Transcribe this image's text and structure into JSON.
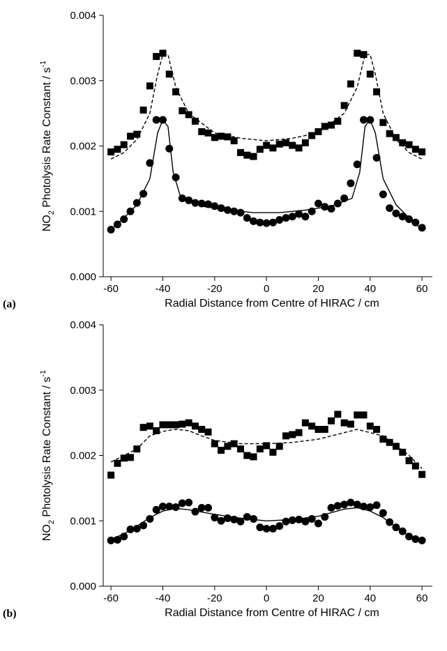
{
  "chart_data": [
    {
      "type": "scatter",
      "panel_label": "(a)",
      "xlabel": "Radial Distance from Centre of HIRAC / cm",
      "ylabel_parts": [
        "NO",
        "2",
        " Photolysis Rate Constant / s",
        "-1"
      ],
      "xlim": [
        -63,
        64
      ],
      "ylim": [
        0,
        0.004
      ],
      "xticks": [
        -60,
        -40,
        -20,
        0,
        20,
        40,
        60
      ],
      "yticks": [
        {
          "value": 0,
          "label": "0.000"
        },
        0.001,
        0.002,
        0.003,
        0.004
      ],
      "series": [
        {
          "marker": "square",
          "color": "#000000",
          "x": [
            -60,
            -57.5,
            -55,
            -52.5,
            -50,
            -47.5,
            -45,
            -42.5,
            -40,
            -37.5,
            -35,
            -32.5,
            -30,
            -27.5,
            -25,
            -22.5,
            -20,
            -17.5,
            -15,
            -12.5,
            -10,
            -7.5,
            -5,
            -2.5,
            0,
            2.5,
            5,
            7.5,
            10,
            12.5,
            15,
            17.5,
            20,
            22.5,
            25,
            27.5,
            30,
            32.5,
            35,
            37.5,
            40,
            42.5,
            45,
            47.5,
            50,
            52.5,
            55,
            57.5,
            60
          ],
          "values": [
            0.00191,
            0.00195,
            0.00202,
            0.00215,
            0.00218,
            0.00255,
            0.00292,
            0.00337,
            0.00342,
            0.0031,
            0.00283,
            0.00254,
            0.00248,
            0.00238,
            0.00222,
            0.0022,
            0.00213,
            0.00215,
            0.00214,
            0.00208,
            0.0019,
            0.00186,
            0.00184,
            0.00195,
            0.00201,
            0.00197,
            0.00203,
            0.00205,
            0.00201,
            0.00197,
            0.00205,
            0.00216,
            0.00222,
            0.0023,
            0.00232,
            0.00238,
            0.00262,
            0.00295,
            0.00342,
            0.0034,
            0.0031,
            0.00283,
            0.00236,
            0.00219,
            0.00213,
            0.00205,
            0.00202,
            0.00195,
            0.00191
          ]
        },
        {
          "marker": "circle",
          "color": "#000000",
          "x": [
            -60,
            -57.5,
            -55,
            -52.5,
            -50,
            -47.5,
            -45,
            -42.5,
            -40,
            -37.5,
            -35,
            -32.5,
            -30,
            -27.5,
            -25,
            -22.5,
            -20,
            -17.5,
            -15,
            -12.5,
            -10,
            -7.5,
            -5,
            -2.5,
            0,
            2.5,
            5,
            7.5,
            10,
            12.5,
            15,
            17.5,
            20,
            22.5,
            25,
            27.5,
            30,
            32.5,
            35,
            37.5,
            40,
            42.5,
            45,
            47.5,
            50,
            52.5,
            55,
            57.5,
            60
          ],
          "values": [
            0.00072,
            0.0008,
            0.00088,
            0.001,
            0.00113,
            0.00127,
            0.00174,
            0.0024,
            0.0024,
            0.00196,
            0.00152,
            0.0012,
            0.00117,
            0.00113,
            0.00112,
            0.00111,
            0.00108,
            0.00105,
            0.00102,
            0.001,
            0.00098,
            0.0009,
            0.00085,
            0.00083,
            0.00082,
            0.00083,
            0.00087,
            0.0009,
            0.00092,
            0.00096,
            0.00092,
            0.001,
            0.00112,
            0.00107,
            0.00104,
            0.00112,
            0.0012,
            0.00143,
            0.00172,
            0.0024,
            0.0024,
            0.00182,
            0.00126,
            0.00105,
            0.00097,
            0.00092,
            0.00088,
            0.00083,
            0.00075
          ]
        },
        {
          "line_style": "dashed",
          "color": "#000000",
          "x": [
            -60,
            -55,
            -50,
            -45,
            -42,
            -40,
            -38,
            -35,
            -30,
            -20,
            -10,
            0,
            10,
            20,
            30,
            35,
            38,
            40,
            42,
            45,
            50,
            55,
            60
          ],
          "values": [
            0.0018,
            0.0019,
            0.0021,
            0.0025,
            0.0031,
            0.0034,
            0.0034,
            0.0029,
            0.0025,
            0.0022,
            0.00212,
            0.00208,
            0.00212,
            0.0022,
            0.0025,
            0.0029,
            0.0034,
            0.0034,
            0.0031,
            0.0025,
            0.0021,
            0.0019,
            0.0018
          ]
        },
        {
          "line_style": "solid",
          "color": "#000000",
          "x": [
            -60,
            -55,
            -50,
            -45,
            -42,
            -40,
            -38,
            -36,
            -33,
            -25,
            -15,
            -5,
            0,
            5,
            15,
            25,
            33,
            36,
            38,
            40,
            42,
            45,
            50,
            55,
            60
          ],
          "values": [
            0.00072,
            0.0009,
            0.0011,
            0.0015,
            0.0022,
            0.0024,
            0.0023,
            0.0016,
            0.0012,
            0.00108,
            0.00102,
            0.00098,
            0.00098,
            0.00098,
            0.00102,
            0.00108,
            0.0012,
            0.0016,
            0.0023,
            0.0024,
            0.0022,
            0.0015,
            0.0011,
            0.0009,
            0.00072
          ]
        }
      ]
    },
    {
      "type": "scatter",
      "panel_label": "(b)",
      "xlabel": "Radial Distance from Centre of HIRAC / cm",
      "ylabel_parts": [
        "NO",
        "2",
        " Photolysis Rate Constant / s",
        "-1"
      ],
      "xlim": [
        -63,
        64
      ],
      "ylim": [
        0,
        0.004
      ],
      "xticks": [
        -60,
        -40,
        -20,
        0,
        20,
        40,
        60
      ],
      "yticks": [
        {
          "value": 0,
          "label": "0.000"
        },
        0.001,
        0.002,
        0.003,
        0.004
      ],
      "series": [
        {
          "marker": "square",
          "color": "#000000",
          "x": [
            -60,
            -57.5,
            -55,
            -52.5,
            -50,
            -47.5,
            -45,
            -42.5,
            -40,
            -37.5,
            -35,
            -32.5,
            -30,
            -27.5,
            -25,
            -22.5,
            -20,
            -17.5,
            -15,
            -12.5,
            -10,
            -7.5,
            -5,
            -2.5,
            0,
            2.5,
            5,
            7.5,
            10,
            12.5,
            15,
            17.5,
            20,
            22.5,
            25,
            27.5,
            30,
            32.5,
            35,
            37.5,
            40,
            42.5,
            45,
            47.5,
            50,
            52.5,
            55,
            57.5,
            60
          ],
          "values": [
            0.0017,
            0.00188,
            0.00196,
            0.00197,
            0.0021,
            0.00243,
            0.00245,
            0.00238,
            0.00247,
            0.00247,
            0.00247,
            0.00248,
            0.0025,
            0.00245,
            0.0024,
            0.00236,
            0.00218,
            0.00208,
            0.00214,
            0.00218,
            0.0021,
            0.002,
            0.00198,
            0.0021,
            0.00215,
            0.00205,
            0.00214,
            0.0023,
            0.00232,
            0.00235,
            0.0025,
            0.00245,
            0.0024,
            0.0024,
            0.00253,
            0.00263,
            0.0025,
            0.00248,
            0.00262,
            0.00262,
            0.00245,
            0.0024,
            0.00225,
            0.0022,
            0.00214,
            0.00205,
            0.00192,
            0.00184,
            0.00171
          ]
        },
        {
          "marker": "circle",
          "color": "#000000",
          "x": [
            -60,
            -57.5,
            -55,
            -52.5,
            -50,
            -47.5,
            -45,
            -42.5,
            -40,
            -37.5,
            -35,
            -32.5,
            -30,
            -27.5,
            -25,
            -22.5,
            -20,
            -17.5,
            -15,
            -12.5,
            -10,
            -7.5,
            -5,
            -2.5,
            0,
            2.5,
            5,
            7.5,
            10,
            12.5,
            15,
            17.5,
            20,
            22.5,
            25,
            27.5,
            30,
            32.5,
            35,
            37.5,
            40,
            42.5,
            45,
            47.5,
            50,
            52.5,
            55,
            57.5,
            60
          ],
          "values": [
            0.0007,
            0.00071,
            0.00076,
            0.00087,
            0.00088,
            0.00093,
            0.00103,
            0.00117,
            0.00122,
            0.00122,
            0.00121,
            0.00127,
            0.00128,
            0.00114,
            0.0012,
            0.0012,
            0.00105,
            0.001,
            0.00104,
            0.00102,
            0.00099,
            0.00106,
            0.00103,
            0.0009,
            0.00088,
            0.00088,
            0.00092,
            0.00099,
            0.00101,
            0.00102,
            0.00099,
            0.00103,
            0.00096,
            0.00106,
            0.0012,
            0.00123,
            0.00125,
            0.00128,
            0.00125,
            0.00122,
            0.00121,
            0.00124,
            0.00112,
            0.00098,
            0.0009,
            0.00084,
            0.00076,
            0.00072,
            0.0007
          ]
        },
        {
          "line_style": "dashed",
          "color": "#000000",
          "x": [
            -60,
            -55,
            -50,
            -45,
            -40,
            -35,
            -30,
            -25,
            -20,
            -10,
            0,
            10,
            20,
            30,
            35,
            40,
            45,
            50,
            55,
            60
          ],
          "values": [
            0.0019,
            0.002,
            0.0021,
            0.0023,
            0.00237,
            0.0024,
            0.00238,
            0.0023,
            0.00223,
            0.00218,
            0.00218,
            0.0022,
            0.00225,
            0.00235,
            0.0024,
            0.00235,
            0.0023,
            0.00215,
            0.002,
            0.0018
          ]
        },
        {
          "line_style": "solid",
          "color": "#000000",
          "x": [
            -60,
            -55,
            -50,
            -45,
            -40,
            -35,
            -30,
            -20,
            -10,
            0,
            10,
            20,
            30,
            35,
            40,
            45,
            50,
            55,
            60
          ],
          "values": [
            0.00072,
            0.0008,
            0.00092,
            0.00105,
            0.00115,
            0.00119,
            0.00117,
            0.0011,
            0.00104,
            0.001,
            0.00102,
            0.00107,
            0.00118,
            0.0012,
            0.00115,
            0.00105,
            0.0009,
            0.00077,
            0.0007
          ]
        }
      ]
    }
  ]
}
